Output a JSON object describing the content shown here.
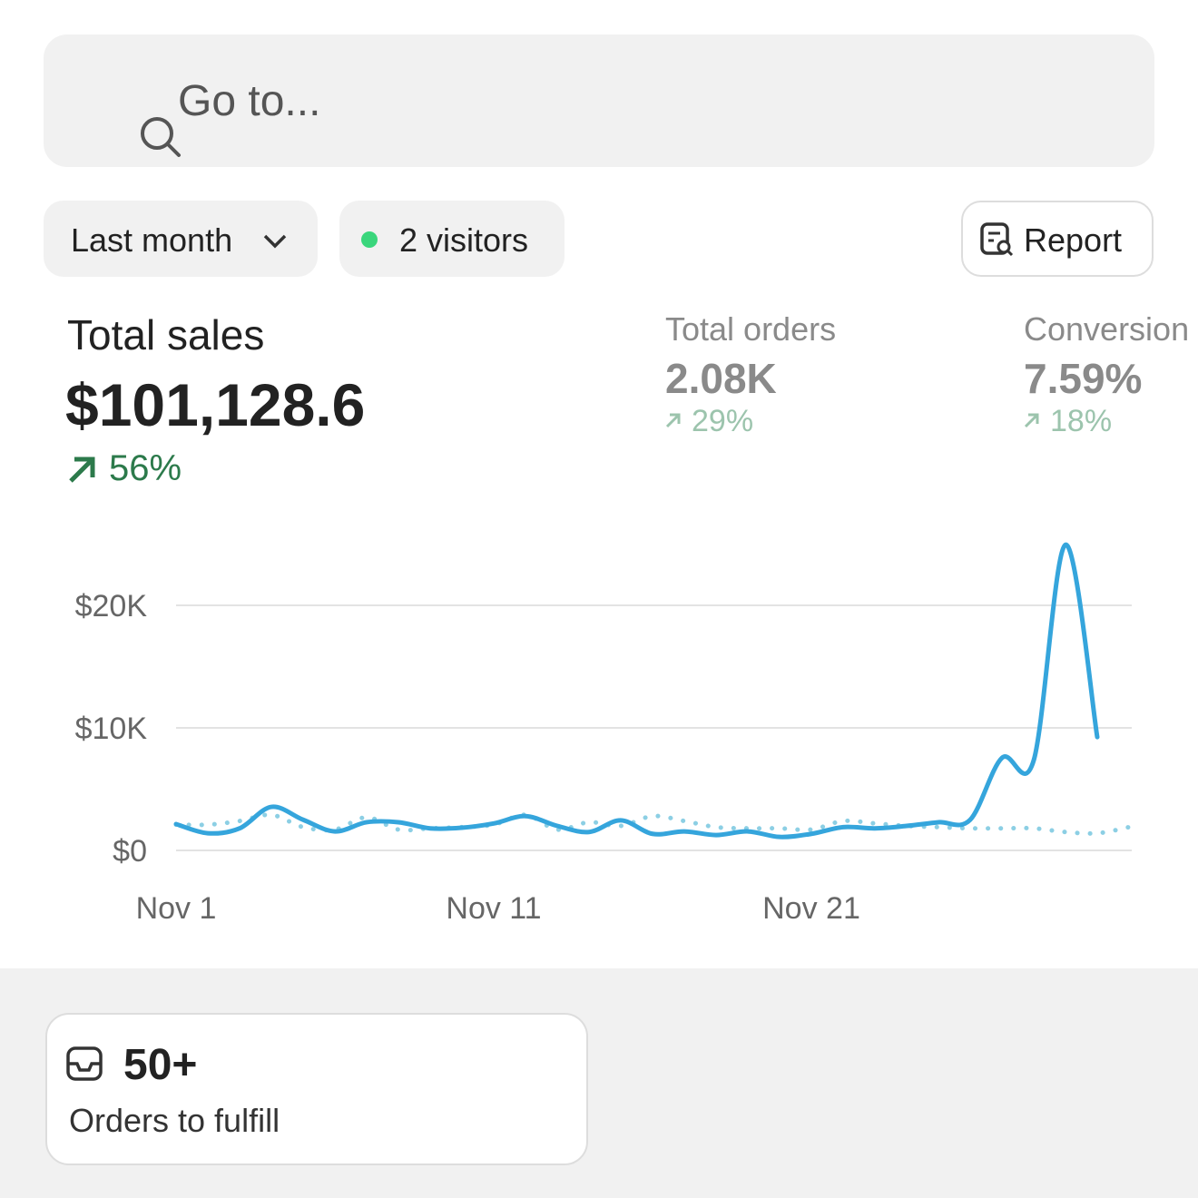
{
  "search": {
    "placeholder": "Go to..."
  },
  "filters": {
    "period": "Last month",
    "visitors": "2 visitors",
    "report": "Report"
  },
  "metrics": [
    {
      "label": "Total sales",
      "value": "$101,128.6",
      "change": "56%"
    },
    {
      "label": "Total orders",
      "value": "2.08K",
      "change": "29%"
    },
    {
      "label": "Conversion",
      "value": "7.59%",
      "change": "18%"
    }
  ],
  "chart_data": {
    "type": "line",
    "categories": [
      "Nov 1",
      null,
      null,
      null,
      null,
      null,
      null,
      null,
      null,
      null,
      "Nov 11",
      null,
      null,
      null,
      null,
      null,
      null,
      null,
      null,
      null,
      "Nov 21",
      null,
      null,
      null,
      null,
      null,
      null,
      null,
      null,
      null,
      null
    ],
    "series": [
      {
        "color": "#35a5dc",
        "style": "solid",
        "values": [
          2150,
          1400,
          1800,
          3550,
          2500,
          1550,
          2300,
          2300,
          1800,
          1850,
          2200,
          2800,
          2000,
          1500,
          2450,
          1350,
          1550,
          1250,
          1550,
          1100,
          1350,
          1900,
          1800,
          2000,
          2300,
          2500,
          7550,
          7350,
          24950,
          9250,
          null
        ]
      },
      {
        "color": "#8ccfe4",
        "style": "dotted",
        "values": [
          2100,
          2100,
          2400,
          2900,
          1900,
          1700,
          2700,
          1700,
          1800,
          1900,
          2100,
          2900,
          1700,
          2300,
          2000,
          2800,
          2400,
          1900,
          1800,
          1800,
          1700,
          2400,
          2200,
          2000,
          1900,
          1800,
          1800,
          1800,
          1500,
          1400,
          1900
        ]
      }
    ],
    "ylim": [
      0,
      26000
    ],
    "yticks": [
      {
        "value": 0,
        "label": "$0"
      },
      {
        "value": 10000,
        "label": "$10K"
      },
      {
        "value": 20000,
        "label": "$20K"
      }
    ],
    "grid": true
  },
  "tasks": {
    "count": "50+",
    "label": "Orders to fulfill"
  }
}
